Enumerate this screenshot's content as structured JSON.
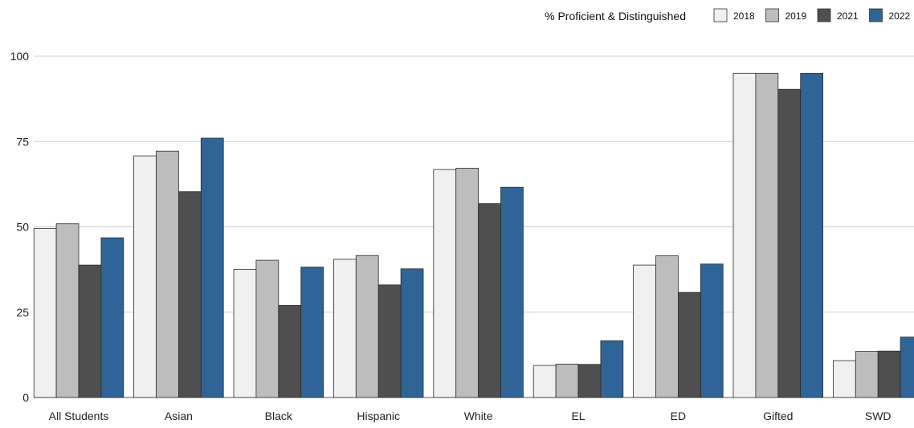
{
  "chart_data": {
    "type": "bar",
    "title": "",
    "xlabel": "",
    "ylabel": "",
    "legend_title": "% Proficient & Distinguished",
    "legend_position": "top-right",
    "grid": true,
    "ylim": [
      0,
      100
    ],
    "yticks": [
      0,
      25,
      50,
      75,
      100
    ],
    "categories": [
      "All Students",
      "Asian",
      "Black",
      "Hispanic",
      "White",
      "EL",
      "ED",
      "Gifted",
      "SWD"
    ],
    "series": [
      {
        "name": "2018",
        "color": "#f0f0f0",
        "values": [
          49.5,
          70.8,
          37.5,
          40.5,
          66.8,
          9.4,
          38.8,
          95,
          10.8
        ]
      },
      {
        "name": "2019",
        "color": "#bdbdbd",
        "values": [
          50.9,
          72.2,
          40.2,
          41.6,
          67.2,
          9.8,
          41.5,
          95,
          13.5
        ]
      },
      {
        "name": "2021",
        "color": "#4f4f4f",
        "values": [
          38.8,
          60.3,
          27.0,
          33.0,
          56.8,
          9.7,
          30.8,
          90.3,
          13.6
        ]
      },
      {
        "name": "2022",
        "color": "#2f6498",
        "values": [
          46.8,
          76.0,
          38.2,
          37.7,
          61.6,
          16.6,
          39.1,
          95,
          17.7
        ]
      }
    ]
  }
}
